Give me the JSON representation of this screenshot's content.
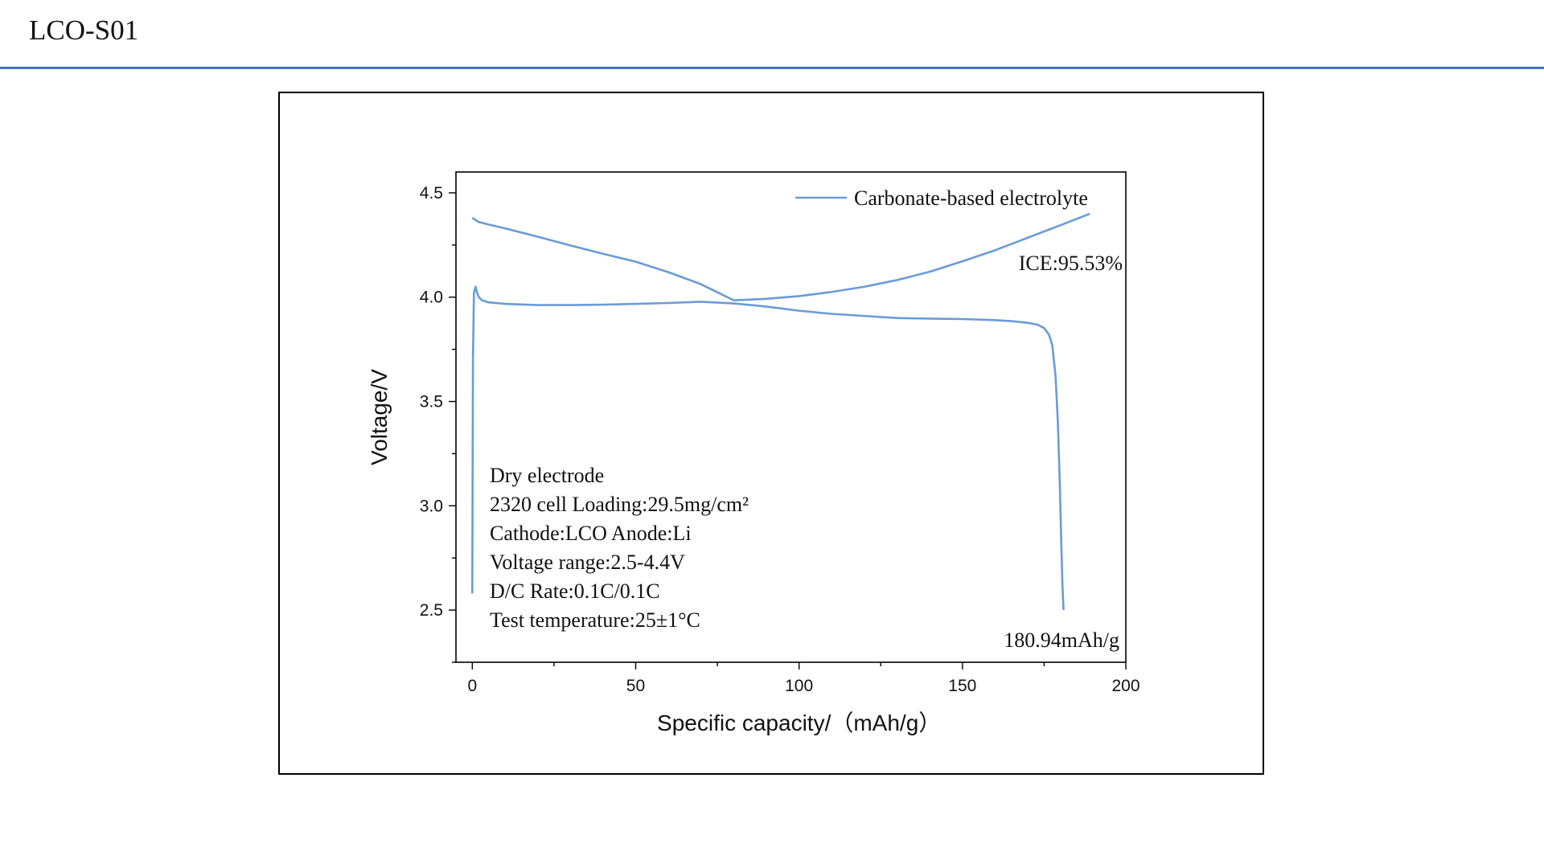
{
  "slide": {
    "title": "LCO-S01",
    "accent_color": "#4472c4"
  },
  "chart_data": {
    "type": "line",
    "xlabel": "Specific capacity/（mAh/g）",
    "ylabel": "Voltage/V",
    "xlim": [
      -5,
      200
    ],
    "ylim": [
      2.25,
      4.6
    ],
    "x_ticks": [
      0,
      50,
      100,
      150,
      200
    ],
    "y_ticks": [
      2.5,
      3.0,
      3.5,
      4.0,
      4.5
    ],
    "grid": false,
    "legend_position": "top-right",
    "line_color": "#6a9bd8",
    "series": [
      {
        "name": "Carbonate-based electrolyte",
        "segments": [
          {
            "x": [
              0,
              0.2,
              0.5,
              1,
              1.5,
              2,
              3,
              5,
              10,
              20,
              30,
              40,
              50,
              60,
              70,
              80,
              90,
              100,
              110,
              120,
              130,
              140,
              150,
              160,
              165,
              170,
              173,
              175,
              176.5,
              177.5,
              178.5,
              179.2,
              179.8,
              180.2,
              180.6,
              180.94
            ],
            "y": [
              2.58,
              3.7,
              4.02,
              4.05,
              4.02,
              4.0,
              3.985,
              3.975,
              3.968,
              3.962,
              3.962,
              3.964,
              3.968,
              3.972,
              3.978,
              3.97,
              3.955,
              3.935,
              3.92,
              3.91,
              3.9,
              3.897,
              3.895,
              3.89,
              3.885,
              3.877,
              3.868,
              3.852,
              3.82,
              3.77,
              3.62,
              3.4,
              3.1,
              2.85,
              2.62,
              2.5
            ]
          },
          {
            "x": [
              0,
              1,
              2,
              5,
              10,
              20,
              30,
              40,
              50,
              60,
              70,
              80,
              90,
              100,
              110,
              120,
              130,
              140,
              150,
              160,
              170,
              180,
              189
            ],
            "y": [
              4.38,
              4.37,
              4.36,
              4.348,
              4.33,
              4.29,
              4.248,
              4.208,
              4.17,
              4.12,
              4.062,
              3.985,
              3.992,
              4.005,
              4.025,
              4.05,
              4.082,
              4.122,
              4.172,
              4.225,
              4.285,
              4.345,
              4.4
            ]
          }
        ]
      }
    ],
    "annotations": {
      "ice": "ICE:95.53%",
      "capacity": "180.94mAh/g",
      "conditions": [
        "Dry electrode",
        "2320  cell   Loading:29.5mg/cm²",
        "Cathode:LCO      Anode:Li",
        "Voltage range:2.5-4.4V",
        "D/C Rate:0.1C/0.1C",
        "Test temperature:25±1°C"
      ]
    }
  }
}
